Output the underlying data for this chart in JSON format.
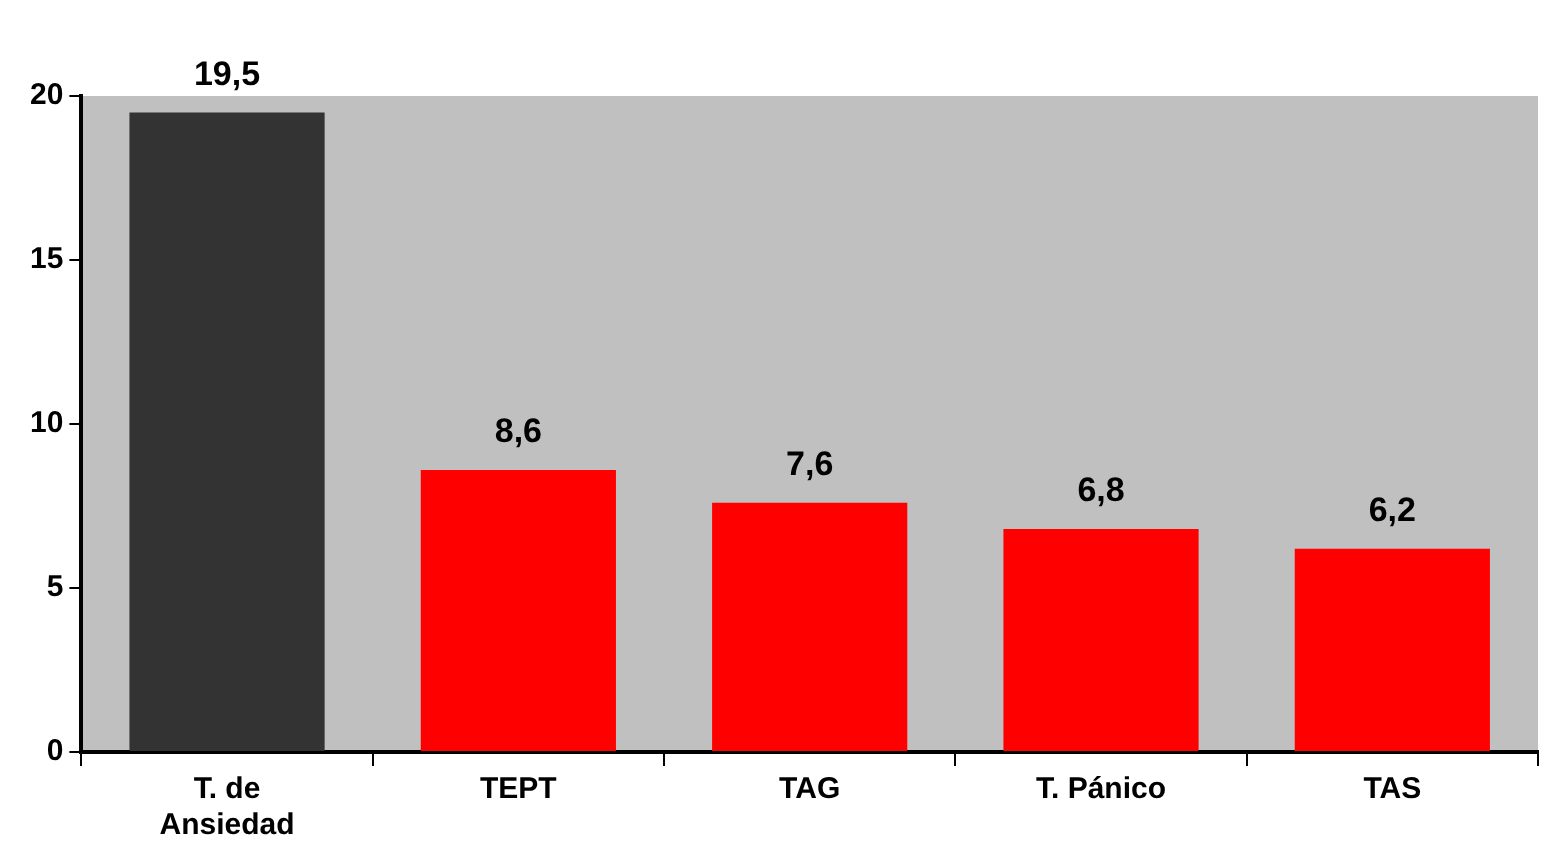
{
  "chart_data": {
    "type": "bar",
    "categories": [
      "T. de Ansiedad",
      "TEPT",
      "TAG",
      "T. Pánico",
      "TAS"
    ],
    "values": [
      19.5,
      8.6,
      7.6,
      6.8,
      6.2
    ],
    "colors": [
      "#333333",
      "#ff0000",
      "#ff0000",
      "#ff0000",
      "#ff0000"
    ],
    "value_labels": [
      "19,5",
      "8,6",
      "7,6",
      "6,8",
      "6,2"
    ],
    "ylim": [
      0,
      20
    ],
    "yticks": [
      0,
      5,
      10,
      15,
      20
    ],
    "grid": false,
    "legend": false
  }
}
